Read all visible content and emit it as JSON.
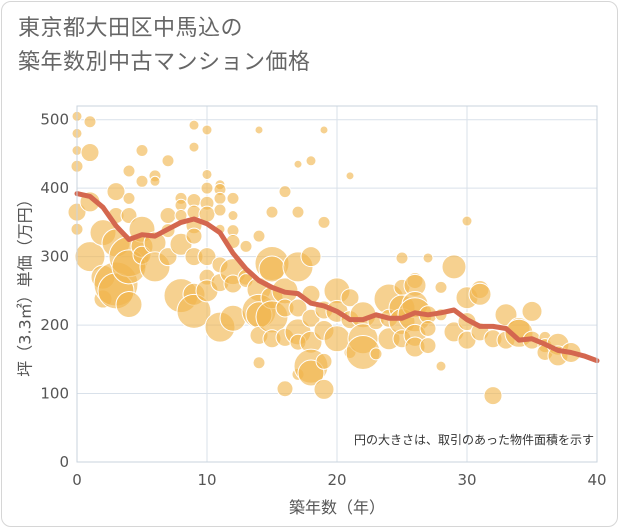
{
  "title_lines": [
    "東京都大田区中馬込の",
    "築年数別中古マンション価格"
  ],
  "note": "円の大きさは、取引のあった物件面積を示す",
  "colors": {
    "bubble": "#f0b44c",
    "line": "#d4674f",
    "grid": "#d9e1ea",
    "plot_border": "#c9d3de"
  },
  "chart_data": {
    "type": "scatter",
    "title": "東京都大田区中馬込の 築年数別中古マンション価格",
    "xlabel": "築年数（年）",
    "ylabel": "坪（3.3㎡）単価（万円）",
    "xlim": [
      0,
      40
    ],
    "ylim": [
      0,
      520
    ],
    "xticks": [
      0,
      10,
      20,
      30,
      40
    ],
    "yticks": [
      0,
      100,
      200,
      300,
      400,
      500
    ],
    "grid": true,
    "bubbles": [
      {
        "x": 0,
        "y": 505,
        "s": 5
      },
      {
        "x": 0,
        "y": 480,
        "s": 5
      },
      {
        "x": 0,
        "y": 455,
        "s": 5
      },
      {
        "x": 0,
        "y": 432,
        "s": 6
      },
      {
        "x": 0,
        "y": 365,
        "s": 9
      },
      {
        "x": 0,
        "y": 340,
        "s": 6
      },
      {
        "x": 1,
        "y": 497,
        "s": 6
      },
      {
        "x": 1,
        "y": 452,
        "s": 9
      },
      {
        "x": 1,
        "y": 380,
        "s": 10
      },
      {
        "x": 1,
        "y": 300,
        "s": 15
      },
      {
        "x": 2,
        "y": 335,
        "s": 13
      },
      {
        "x": 2,
        "y": 270,
        "s": 12
      },
      {
        "x": 2,
        "y": 238,
        "s": 9
      },
      {
        "x": 3,
        "y": 395,
        "s": 9
      },
      {
        "x": 3,
        "y": 360,
        "s": 8
      },
      {
        "x": 3,
        "y": 320,
        "s": 14
      },
      {
        "x": 3,
        "y": 260,
        "s": 22
      },
      {
        "x": 3,
        "y": 250,
        "s": 18
      },
      {
        "x": 4,
        "y": 425,
        "s": 6
      },
      {
        "x": 4,
        "y": 385,
        "s": 6
      },
      {
        "x": 4,
        "y": 360,
        "s": 8
      },
      {
        "x": 4,
        "y": 300,
        "s": 20
      },
      {
        "x": 4,
        "y": 285,
        "s": 17
      },
      {
        "x": 4,
        "y": 230,
        "s": 13
      },
      {
        "x": 5,
        "y": 455,
        "s": 6
      },
      {
        "x": 5,
        "y": 410,
        "s": 6
      },
      {
        "x": 5,
        "y": 340,
        "s": 13
      },
      {
        "x": 5,
        "y": 315,
        "s": 11
      },
      {
        "x": 5,
        "y": 302,
        "s": 9
      },
      {
        "x": 6,
        "y": 418,
        "s": 6
      },
      {
        "x": 6,
        "y": 410,
        "s": 5
      },
      {
        "x": 6,
        "y": 320,
        "s": 11
      },
      {
        "x": 6,
        "y": 285,
        "s": 15
      },
      {
        "x": 7,
        "y": 440,
        "s": 6
      },
      {
        "x": 7,
        "y": 360,
        "s": 8
      },
      {
        "x": 7,
        "y": 338,
        "s": 7
      },
      {
        "x": 7,
        "y": 300,
        "s": 9
      },
      {
        "x": 8,
        "y": 385,
        "s": 6
      },
      {
        "x": 8,
        "y": 375,
        "s": 6
      },
      {
        "x": 8,
        "y": 360,
        "s": 6
      },
      {
        "x": 8,
        "y": 318,
        "s": 11
      },
      {
        "x": 8,
        "y": 243,
        "s": 17
      },
      {
        "x": 9,
        "y": 492,
        "s": 5
      },
      {
        "x": 9,
        "y": 460,
        "s": 5
      },
      {
        "x": 9,
        "y": 382,
        "s": 7
      },
      {
        "x": 9,
        "y": 365,
        "s": 7
      },
      {
        "x": 9,
        "y": 345,
        "s": 8
      },
      {
        "x": 9,
        "y": 330,
        "s": 8
      },
      {
        "x": 9,
        "y": 300,
        "s": 9
      },
      {
        "x": 9,
        "y": 245,
        "s": 11
      },
      {
        "x": 9,
        "y": 220,
        "s": 17
      },
      {
        "x": 10,
        "y": 485,
        "s": 5
      },
      {
        "x": 10,
        "y": 420,
        "s": 5
      },
      {
        "x": 10,
        "y": 400,
        "s": 6
      },
      {
        "x": 10,
        "y": 378,
        "s": 7
      },
      {
        "x": 10,
        "y": 362,
        "s": 8
      },
      {
        "x": 10,
        "y": 300,
        "s": 9
      },
      {
        "x": 10,
        "y": 270,
        "s": 8
      },
      {
        "x": 10,
        "y": 250,
        "s": 11
      },
      {
        "x": 11,
        "y": 405,
        "s": 5
      },
      {
        "x": 11,
        "y": 398,
        "s": 6
      },
      {
        "x": 11,
        "y": 385,
        "s": 6
      },
      {
        "x": 11,
        "y": 368,
        "s": 6
      },
      {
        "x": 11,
        "y": 340,
        "s": 5
      },
      {
        "x": 11,
        "y": 288,
        "s": 8
      },
      {
        "x": 11,
        "y": 262,
        "s": 9
      },
      {
        "x": 11,
        "y": 197,
        "s": 15
      },
      {
        "x": 12,
        "y": 385,
        "s": 6
      },
      {
        "x": 12,
        "y": 360,
        "s": 5
      },
      {
        "x": 12,
        "y": 338,
        "s": 6
      },
      {
        "x": 12,
        "y": 322,
        "s": 7
      },
      {
        "x": 12,
        "y": 278,
        "s": 13
      },
      {
        "x": 12,
        "y": 260,
        "s": 9
      },
      {
        "x": 12,
        "y": 210,
        "s": 13
      },
      {
        "x": 13,
        "y": 315,
        "s": 6
      },
      {
        "x": 13,
        "y": 270,
        "s": 8
      },
      {
        "x": 13,
        "y": 265,
        "s": 7
      },
      {
        "x": 14,
        "y": 485,
        "s": 4
      },
      {
        "x": 14,
        "y": 330,
        "s": 6
      },
      {
        "x": 14,
        "y": 252,
        "s": 12
      },
      {
        "x": 14,
        "y": 220,
        "s": 17
      },
      {
        "x": 14,
        "y": 215,
        "s": 13
      },
      {
        "x": 14,
        "y": 185,
        "s": 9
      },
      {
        "x": 14,
        "y": 145,
        "s": 6
      },
      {
        "x": 15,
        "y": 365,
        "s": 6
      },
      {
        "x": 15,
        "y": 290,
        "s": 17
      },
      {
        "x": 15,
        "y": 282,
        "s": 13
      },
      {
        "x": 15,
        "y": 240,
        "s": 11
      },
      {
        "x": 15,
        "y": 212,
        "s": 16
      },
      {
        "x": 15,
        "y": 180,
        "s": 9
      },
      {
        "x": 16,
        "y": 395,
        "s": 6
      },
      {
        "x": 16,
        "y": 250,
        "s": 13
      },
      {
        "x": 16,
        "y": 225,
        "s": 9
      },
      {
        "x": 16,
        "y": 182,
        "s": 9
      },
      {
        "x": 16,
        "y": 107,
        "s": 8
      },
      {
        "x": 17,
        "y": 435,
        "s": 4
      },
      {
        "x": 17,
        "y": 365,
        "s": 6
      },
      {
        "x": 17,
        "y": 285,
        "s": 15
      },
      {
        "x": 17,
        "y": 225,
        "s": 9
      },
      {
        "x": 17,
        "y": 190,
        "s": 13
      },
      {
        "x": 17,
        "y": 175,
        "s": 8
      },
      {
        "x": 17,
        "y": 128,
        "s": 6
      },
      {
        "x": 18,
        "y": 440,
        "s": 5
      },
      {
        "x": 18,
        "y": 300,
        "s": 10
      },
      {
        "x": 18,
        "y": 245,
        "s": 9
      },
      {
        "x": 18,
        "y": 210,
        "s": 9
      },
      {
        "x": 18,
        "y": 175,
        "s": 11
      },
      {
        "x": 18,
        "y": 140,
        "s": 17
      },
      {
        "x": 18,
        "y": 130,
        "s": 13
      },
      {
        "x": 19,
        "y": 485,
        "s": 4
      },
      {
        "x": 19,
        "y": 350,
        "s": 6
      },
      {
        "x": 19,
        "y": 222,
        "s": 9
      },
      {
        "x": 19,
        "y": 192,
        "s": 10
      },
      {
        "x": 19,
        "y": 147,
        "s": 8
      },
      {
        "x": 19,
        "y": 106,
        "s": 10
      },
      {
        "x": 20,
        "y": 250,
        "s": 13
      },
      {
        "x": 20,
        "y": 220,
        "s": 11
      },
      {
        "x": 20,
        "y": 180,
        "s": 13
      },
      {
        "x": 21,
        "y": 418,
        "s": 4
      },
      {
        "x": 21,
        "y": 240,
        "s": 9
      },
      {
        "x": 21,
        "y": 208,
        "s": 9
      },
      {
        "x": 21,
        "y": 160,
        "s": 6
      },
      {
        "x": 22,
        "y": 215,
        "s": 13
      },
      {
        "x": 22,
        "y": 180,
        "s": 15
      },
      {
        "x": 22,
        "y": 160,
        "s": 17
      },
      {
        "x": 23,
        "y": 205,
        "s": 8
      },
      {
        "x": 23,
        "y": 158,
        "s": 6
      },
      {
        "x": 24,
        "y": 238,
        "s": 15
      },
      {
        "x": 24,
        "y": 210,
        "s": 9
      },
      {
        "x": 24,
        "y": 180,
        "s": 11
      },
      {
        "x": 25,
        "y": 298,
        "s": 6
      },
      {
        "x": 25,
        "y": 255,
        "s": 8
      },
      {
        "x": 25,
        "y": 225,
        "s": 13
      },
      {
        "x": 25,
        "y": 205,
        "s": 13
      },
      {
        "x": 25,
        "y": 180,
        "s": 9
      },
      {
        "x": 26,
        "y": 265,
        "s": 8
      },
      {
        "x": 26,
        "y": 258,
        "s": 11
      },
      {
        "x": 26,
        "y": 230,
        "s": 13
      },
      {
        "x": 26,
        "y": 215,
        "s": 17
      },
      {
        "x": 26,
        "y": 185,
        "s": 11
      },
      {
        "x": 26,
        "y": 168,
        "s": 10
      },
      {
        "x": 27,
        "y": 298,
        "s": 5
      },
      {
        "x": 27,
        "y": 215,
        "s": 9
      },
      {
        "x": 27,
        "y": 195,
        "s": 8
      },
      {
        "x": 27,
        "y": 170,
        "s": 8
      },
      {
        "x": 28,
        "y": 255,
        "s": 6
      },
      {
        "x": 28,
        "y": 215,
        "s": 6
      },
      {
        "x": 28,
        "y": 140,
        "s": 5
      },
      {
        "x": 29,
        "y": 285,
        "s": 12
      },
      {
        "x": 29,
        "y": 190,
        "s": 10
      },
      {
        "x": 30,
        "y": 352,
        "s": 5
      },
      {
        "x": 30,
        "y": 240,
        "s": 11
      },
      {
        "x": 30,
        "y": 205,
        "s": 9
      },
      {
        "x": 30,
        "y": 178,
        "s": 9
      },
      {
        "x": 31,
        "y": 252,
        "s": 9
      },
      {
        "x": 31,
        "y": 245,
        "s": 11
      },
      {
        "x": 31,
        "y": 190,
        "s": 9
      },
      {
        "x": 32,
        "y": 180,
        "s": 9
      },
      {
        "x": 32,
        "y": 97,
        "s": 9
      },
      {
        "x": 33,
        "y": 215,
        "s": 11
      },
      {
        "x": 33,
        "y": 178,
        "s": 9
      },
      {
        "x": 34,
        "y": 195,
        "s": 11
      },
      {
        "x": 34,
        "y": 188,
        "s": 14
      },
      {
        "x": 35,
        "y": 220,
        "s": 10
      },
      {
        "x": 35,
        "y": 178,
        "s": 9
      },
      {
        "x": 36,
        "y": 182,
        "s": 6
      },
      {
        "x": 36,
        "y": 170,
        "s": 7
      },
      {
        "x": 36,
        "y": 160,
        "s": 8
      },
      {
        "x": 37,
        "y": 172,
        "s": 11
      },
      {
        "x": 37,
        "y": 155,
        "s": 10
      },
      {
        "x": 38,
        "y": 160,
        "s": 10
      }
    ],
    "trend": {
      "x": [
        0,
        1,
        2,
        3,
        4,
        5,
        6,
        7,
        8,
        9,
        10,
        11,
        12,
        13,
        14,
        15,
        16,
        17,
        18,
        19,
        20,
        21,
        22,
        23,
        24,
        25,
        26,
        27,
        28,
        29,
        30,
        31,
        32,
        33,
        34,
        35,
        36,
        37,
        38,
        39,
        40
      ],
      "y": [
        392,
        388,
        372,
        345,
        325,
        332,
        330,
        340,
        350,
        355,
        348,
        335,
        305,
        282,
        265,
        255,
        248,
        246,
        232,
        228,
        220,
        208,
        208,
        215,
        210,
        210,
        218,
        215,
        218,
        222,
        208,
        198,
        198,
        195,
        178,
        180,
        172,
        163,
        160,
        155,
        148
      ]
    }
  }
}
